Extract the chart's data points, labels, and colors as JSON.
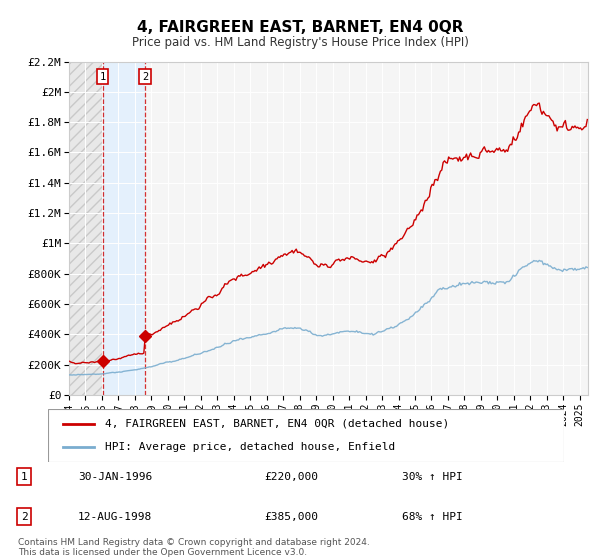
{
  "title": "4, FAIRGREEN EAST, BARNET, EN4 0QR",
  "subtitle": "Price paid vs. HM Land Registry's House Price Index (HPI)",
  "sale1_year": 1996,
  "sale1_month": 1,
  "sale1_price": 220000,
  "sale2_year": 1998,
  "sale2_month": 8,
  "sale2_price": 385000,
  "legend_line1": "4, FAIRGREEN EAST, BARNET, EN4 0QR (detached house)",
  "legend_line2": "HPI: Average price, detached house, Enfield",
  "footnote1": "Contains HM Land Registry data © Crown copyright and database right 2024.",
  "footnote2": "This data is licensed under the Open Government Licence v3.0.",
  "red_color": "#cc0000",
  "blue_color": "#7aadcf",
  "ylim": [
    0,
    2200000
  ],
  "xlim_start": 1994.0,
  "xlim_end": 2025.5,
  "sale1_info": [
    "1",
    "30-JAN-1996",
    "£220,000",
    "30% ↑ HPI"
  ],
  "sale2_info": [
    "2",
    "12-AUG-1998",
    "£385,000",
    "68% ↑ HPI"
  ]
}
